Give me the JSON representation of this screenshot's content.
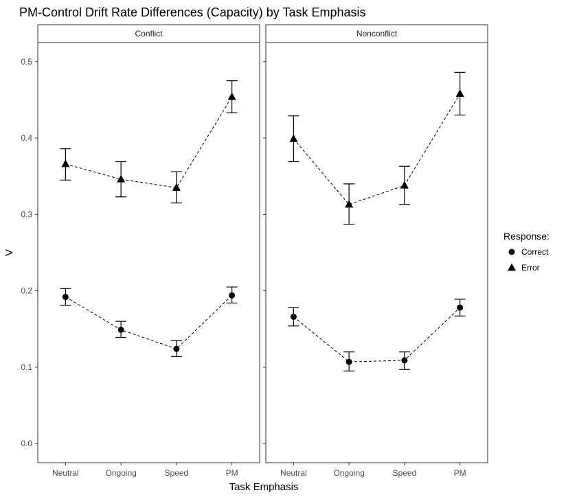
{
  "chart_data": {
    "type": "line",
    "title": "PM-Control Drift Rate Differences (Capacity) by Task Emphasis",
    "xlabel": "Task Emphasis",
    "ylabel": "V",
    "ylim": [
      -0.025,
      0.525
    ],
    "yticks": [
      "0.0",
      "0.1",
      "0.2",
      "0.3",
      "0.4",
      "0.5"
    ],
    "ytick_values": [
      0.0,
      0.1,
      0.2,
      0.3,
      0.4,
      0.5
    ],
    "categories": [
      "Neutral",
      "Ongoing",
      "Speed",
      "PM"
    ],
    "grid": false,
    "legend": {
      "title": "Response:",
      "placement": "right",
      "entries": [
        {
          "name": "Correct",
          "marker": "circle"
        },
        {
          "name": "Error",
          "marker": "triangle"
        }
      ]
    },
    "line_style": "dashed",
    "colors": {
      "ink": "#000000",
      "panel_border": "#333333",
      "axis_text": "#4d4d4d"
    },
    "facets": [
      {
        "label": "Conflict",
        "series": [
          {
            "name": "Correct",
            "marker": "circle",
            "values": [
              0.192,
              0.149,
              0.124,
              0.194
            ],
            "lower": [
              0.181,
              0.139,
              0.114,
              0.184
            ],
            "upper": [
              0.203,
              0.16,
              0.135,
              0.205
            ]
          },
          {
            "name": "Error",
            "marker": "triangle",
            "values": [
              0.366,
              0.346,
              0.335,
              0.454
            ],
            "lower": [
              0.345,
              0.323,
              0.315,
              0.433
            ],
            "upper": [
              0.386,
              0.369,
              0.356,
              0.475
            ]
          }
        ]
      },
      {
        "label": "Nonconflict",
        "series": [
          {
            "name": "Correct",
            "marker": "circle",
            "values": [
              0.166,
              0.107,
              0.109,
              0.178
            ],
            "lower": [
              0.154,
              0.095,
              0.097,
              0.167
            ],
            "upper": [
              0.178,
              0.12,
              0.12,
              0.189
            ]
          },
          {
            "name": "Error",
            "marker": "triangle",
            "values": [
              0.399,
              0.313,
              0.338,
              0.458
            ],
            "lower": [
              0.369,
              0.287,
              0.313,
              0.43
            ],
            "upper": [
              0.429,
              0.34,
              0.363,
              0.486
            ]
          }
        ]
      }
    ]
  }
}
